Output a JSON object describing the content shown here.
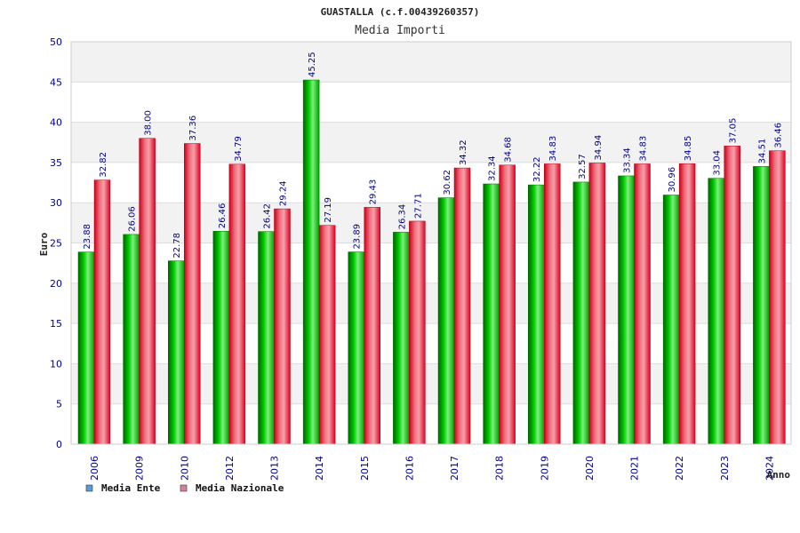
{
  "chart_data": {
    "type": "bar",
    "title": "GUASTALLA (c.f.00439260357)",
    "subtitle": "Media Importi",
    "xlabel": "Anno",
    "ylabel": "Euro",
    "ylim": [
      0,
      50
    ],
    "yticks": [
      "0",
      "5",
      "10",
      "15",
      "20",
      "25",
      "30",
      "35",
      "40",
      "45",
      "50"
    ],
    "grid": true,
    "legend_position": "bottom-left",
    "categories": [
      "2006",
      "2009",
      "2010",
      "2012",
      "2013",
      "2014",
      "2015",
      "2016",
      "2017",
      "2018",
      "2019",
      "2020",
      "2021",
      "2022",
      "2023",
      "2024"
    ],
    "series": [
      {
        "name": "Media Ente",
        "color": "#00b000",
        "legend_color": "#5b9bd5",
        "values": [
          23.88,
          26.06,
          22.78,
          26.46,
          26.42,
          45.25,
          23.89,
          26.34,
          30.62,
          32.34,
          32.22,
          32.57,
          33.34,
          30.96,
          33.04,
          34.51
        ],
        "labels": [
          "23.88",
          "26.06",
          "22.78",
          "26.46",
          "26.42",
          "45.25",
          "23.89",
          "26.34",
          "30.62",
          "32.34",
          "32.22",
          "32.57",
          "33.34",
          "30.96",
          "33.04",
          "34.51"
        ]
      },
      {
        "name": "Media Nazionale",
        "color": "#e8001c",
        "legend_color": "#d77fa1",
        "values": [
          32.82,
          38.0,
          37.36,
          34.79,
          29.24,
          27.19,
          29.43,
          27.71,
          34.32,
          34.68,
          34.83,
          34.94,
          34.83,
          34.85,
          37.05,
          36.46
        ],
        "labels": [
          "32.82",
          "38.00",
          "37.36",
          "34.79",
          "29.24",
          "27.19",
          "29.43",
          "27.71",
          "34.32",
          "34.68",
          "34.83",
          "34.94",
          "34.83",
          "34.85",
          "37.05",
          "36.46"
        ]
      }
    ]
  }
}
